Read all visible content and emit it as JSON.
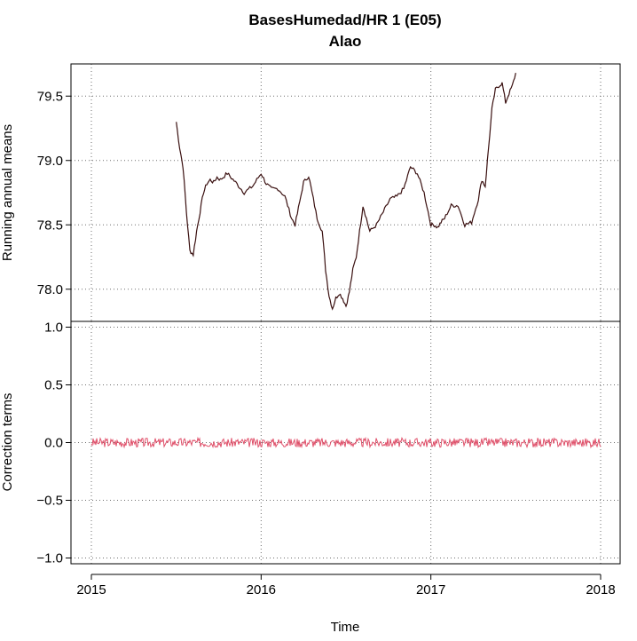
{
  "chart_data": {
    "type": "line",
    "title": "BasesHumedad/HR   1 (E05)",
    "subtitle": "Alao",
    "xlabel": "Time",
    "x_ticks": [
      2015,
      2016,
      2017,
      2018
    ],
    "xlim": [
      2015,
      2018
    ],
    "grid": true,
    "panels": [
      {
        "name": "running-means",
        "ylabel": "Running annual means",
        "y_ticks": [
          "78.0",
          "78.5",
          "79.0",
          "79.5"
        ],
        "ylim": [
          77.75,
          79.75
        ],
        "color": "#3a1010",
        "series": [
          {
            "x": [
              2015.5,
              2015.52,
              2015.54,
              2015.56,
              2015.58,
              2015.6,
              2015.62,
              2015.64,
              2015.66,
              2015.68,
              2015.7,
              2015.72,
              2015.74,
              2015.76,
              2015.8,
              2015.85,
              2015.9,
              2015.95,
              2016.0,
              2016.03,
              2016.06,
              2016.1,
              2016.14,
              2016.18,
              2016.2,
              2016.22,
              2016.25,
              2016.28,
              2016.3,
              2016.33,
              2016.36,
              2016.38,
              2016.4,
              2016.42,
              2016.44,
              2016.46,
              2016.48,
              2016.5,
              2016.52,
              2016.54,
              2016.56,
              2016.58,
              2016.6,
              2016.62,
              2016.64,
              2016.68,
              2016.72,
              2016.76,
              2016.8,
              2016.84,
              2016.88,
              2016.92,
              2016.96,
              2017.0,
              2017.02,
              2017.04,
              2017.06,
              2017.08,
              2017.12,
              2017.16,
              2017.2,
              2017.24,
              2017.28,
              2017.3,
              2017.32,
              2017.34,
              2017.36,
              2017.38,
              2017.4,
              2017.42,
              2017.44,
              2017.46,
              2017.48,
              2017.5
            ],
            "y": [
              79.3,
              79.1,
              78.95,
              78.6,
              78.3,
              78.27,
              78.45,
              78.6,
              78.75,
              78.82,
              78.85,
              78.83,
              78.87,
              78.85,
              78.9,
              78.83,
              78.75,
              78.8,
              78.9,
              78.82,
              78.78,
              78.78,
              78.72,
              78.55,
              78.5,
              78.63,
              78.83,
              78.88,
              78.75,
              78.55,
              78.45,
              78.15,
              77.95,
              77.85,
              77.93,
              77.97,
              77.93,
              77.87,
              77.98,
              78.15,
              78.25,
              78.45,
              78.65,
              78.55,
              78.45,
              78.5,
              78.6,
              78.7,
              78.72,
              78.78,
              78.95,
              78.9,
              78.75,
              78.5,
              78.5,
              78.48,
              78.52,
              78.55,
              78.65,
              78.65,
              78.5,
              78.52,
              78.7,
              78.85,
              78.8,
              79.1,
              79.4,
              79.55,
              79.58,
              79.6,
              79.45,
              79.52,
              79.58,
              79.68
            ]
          }
        ]
      },
      {
        "name": "correction-terms",
        "ylabel": "Correction terms",
        "y_ticks": [
          "−1.0",
          "−0.5",
          "0.0",
          "0.5",
          "1.0"
        ],
        "ylim": [
          -1.05,
          1.05
        ],
        "color": "#e0506a",
        "series": [
          {
            "x_start": 2015.0,
            "x_end": 2018.0,
            "center": 0.0,
            "amplitude": 0.04
          }
        ]
      }
    ]
  }
}
